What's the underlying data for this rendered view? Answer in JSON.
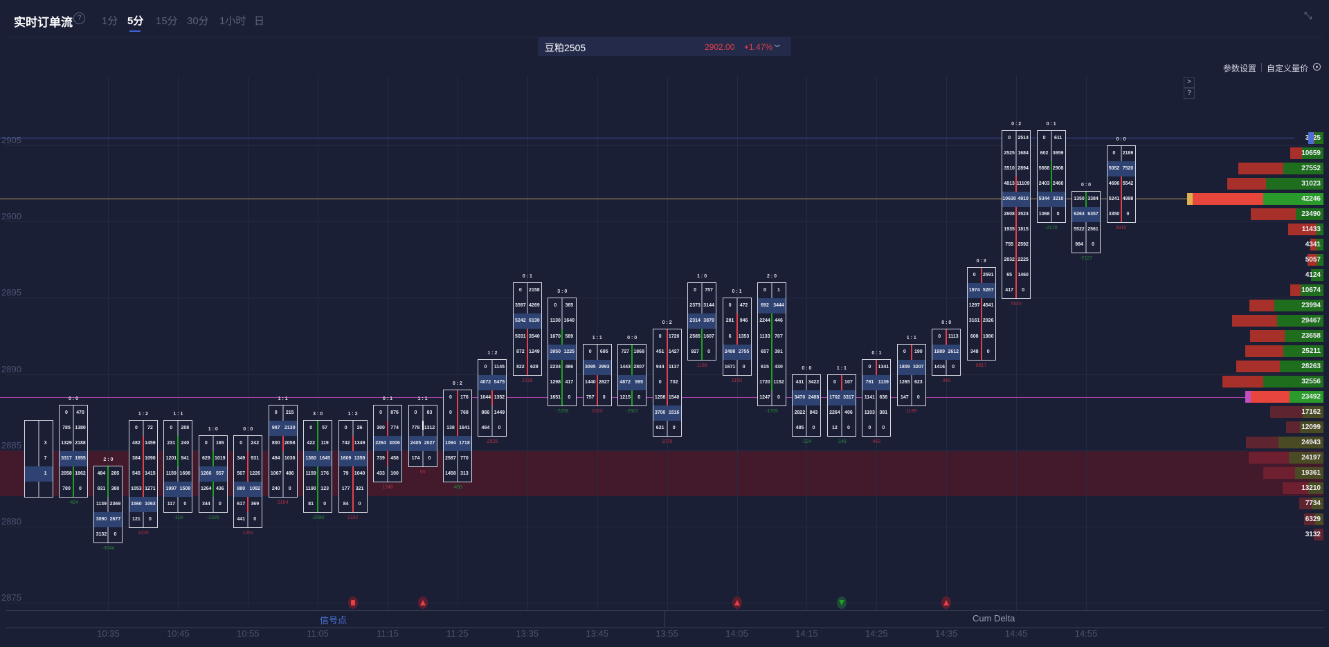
{
  "header": {
    "title": "实时订单流",
    "help": "?",
    "tabs": [
      "1分",
      "5分",
      "15分",
      "30分",
      "1小时",
      "日"
    ],
    "active_tab": "5分",
    "collapse_icon": "collapse-icon"
  },
  "symbol": {
    "name": "豆粕2505",
    "price": "2902.00",
    "change": "+1.47%",
    "color": "#e8404a"
  },
  "links": {
    "params": "参数设置",
    "custom": "自定义量价"
  },
  "side_buttons": [
    ">",
    "?"
  ],
  "y_axis": {
    "labels": [
      "2905",
      "2900",
      "2895",
      "2890",
      "2885",
      "2880",
      "2875"
    ]
  },
  "x_axis": {
    "labels": [
      "10:35",
      "10:45",
      "10:55",
      "11:05",
      "11:15",
      "11:25",
      "13:35",
      "13:45",
      "13:55",
      "14:05",
      "14:15",
      "14:25",
      "14:35",
      "14:45",
      "14:55"
    ]
  },
  "bottom_tabs": {
    "signals": "信号点",
    "cum_delta": "Cum Delta"
  },
  "colors": {
    "bg": "#1b1f36",
    "up": "#e8404a",
    "down": "#22a022",
    "poc_line": "#b8a060",
    "vah_line": "#3d52a0",
    "val_line": "#b040b0",
    "accent": "#3d64d6"
  },
  "candles": [
    {
      "head": "",
      "top": 2886,
      "rows": [
        [
          "",
          ""
        ],
        [
          "",
          "3"
        ],
        [
          "",
          "7"
        ],
        [
          "",
          "1"
        ],
        [
          "",
          ""
        ]
      ],
      "hl": 3,
      "foot": "",
      "body": null
    },
    {
      "head": "0 : 0",
      "top": 2887,
      "rows": [
        [
          "0",
          "470"
        ],
        [
          "785",
          "1380"
        ],
        [
          "1329",
          "2188"
        ],
        [
          "3317",
          "1955"
        ],
        [
          "2058",
          "1862"
        ],
        [
          "780",
          "0"
        ]
      ],
      "hl": 3,
      "foot": "-424",
      "body": [
        2884,
        2882,
        "green"
      ]
    },
    {
      "head": "2 : 0",
      "top": 2883,
      "rows": [
        [
          "484",
          "285"
        ],
        [
          "831",
          "380"
        ],
        [
          "1139",
          "2369"
        ],
        [
          "3090",
          "2677"
        ],
        [
          "3132",
          "0"
        ]
      ],
      "hl": 3,
      "foot": "-3044",
      "body": [
        2883,
        2882,
        "green"
      ]
    },
    {
      "head": "1 : 2",
      "top": 2886,
      "rows": [
        [
          "0",
          "72"
        ],
        [
          "482",
          "1459"
        ],
        [
          "384",
          "1090"
        ],
        [
          "545",
          "1415"
        ],
        [
          "1053",
          "1271"
        ],
        [
          "1560",
          "1063"
        ],
        [
          "121",
          "0"
        ]
      ],
      "hl": 5,
      "foot": "2225",
      "body": [
        2885,
        2881,
        "red"
      ]
    },
    {
      "head": "1 : 1",
      "top": 2886,
      "rows": [
        [
          "0",
          "208"
        ],
        [
          "231",
          "240"
        ],
        [
          "1201",
          "941"
        ],
        [
          "1159",
          "1698"
        ],
        [
          "1997",
          "1508"
        ],
        [
          "117",
          "0"
        ]
      ],
      "hl": 4,
      "foot": "-118",
      "body": [
        2885,
        2884,
        "green"
      ]
    },
    {
      "head": "1 : 0",
      "top": 2885,
      "rows": [
        [
          "0",
          "165"
        ],
        [
          "629",
          "1019"
        ],
        [
          "1266",
          "557"
        ],
        [
          "1264",
          "436"
        ],
        [
          "344",
          "0"
        ]
      ],
      "hl": 2,
      "foot": "-1326",
      "body": [
        2884,
        2882,
        "green"
      ]
    },
    {
      "head": "0 : 0",
      "top": 2885,
      "rows": [
        [
          "0",
          "242"
        ],
        [
          "349",
          "931"
        ],
        [
          "507",
          "1226"
        ],
        [
          "880",
          "1082"
        ],
        [
          "617",
          "369"
        ],
        [
          "441",
          "0"
        ]
      ],
      "hl": 3,
      "foot": "1261",
      "body": [
        2884,
        2881,
        "red"
      ]
    },
    {
      "head": "1 : 1",
      "top": 2887,
      "rows": [
        [
          "0",
          "215"
        ],
        [
          "987",
          "2130"
        ],
        [
          "800",
          "2058"
        ],
        [
          "494",
          "1036"
        ],
        [
          "1067",
          "486"
        ],
        [
          "240",
          "0"
        ]
      ],
      "hl": 1,
      "foot": "2104",
      "body": [
        2886,
        2885,
        "red"
      ]
    },
    {
      "head": "3 : 0",
      "top": 2886,
      "rows": [
        [
          "0",
          "57"
        ],
        [
          "422",
          "119"
        ],
        [
          "1360",
          "1645"
        ],
        [
          "1159",
          "176"
        ],
        [
          "1190",
          "123"
        ],
        [
          "81",
          "0"
        ]
      ],
      "hl": 2,
      "foot": "-2090",
      "body": [
        2886,
        2881,
        "green"
      ]
    },
    {
      "head": "1 : 2",
      "top": 2886,
      "rows": [
        [
          "0",
          "26"
        ],
        [
          "742",
          "1349"
        ],
        [
          "1609",
          "1359"
        ],
        [
          "79",
          "1040"
        ],
        [
          "177",
          "321"
        ],
        [
          "84",
          "0"
        ]
      ],
      "hl": 2,
      "foot": "1332",
      "body": [
        2885,
        2881,
        "red"
      ]
    },
    {
      "head": "0 : 1",
      "top": 2887,
      "rows": [
        [
          "0",
          "876"
        ],
        [
          "300",
          "774"
        ],
        [
          "2264",
          "3006"
        ],
        [
          "739",
          "458"
        ],
        [
          "433",
          "100"
        ]
      ],
      "hl": 2,
      "foot": "1248",
      "body": [
        2886,
        2884,
        "red"
      ]
    },
    {
      "head": "1 : 1",
      "top": 2887,
      "rows": [
        [
          "0",
          "83"
        ],
        [
          "778",
          "1312"
        ],
        [
          "2405",
          "2027"
        ],
        [
          "174",
          "0"
        ]
      ],
      "hl": 2,
      "foot": "65",
      "body": [
        2886,
        2886,
        "white"
      ]
    },
    {
      "head": "0 : 2",
      "top": 2888,
      "rows": [
        [
          "0",
          "176"
        ],
        [
          "0",
          "768"
        ],
        [
          "138",
          "1641"
        ],
        [
          "1094",
          "1718"
        ],
        [
          "2587",
          "770"
        ],
        [
          "1458",
          "313"
        ]
      ],
      "hl": 3,
      "foot": "-490",
      "body": [
        2888,
        2886,
        "red"
      ]
    },
    {
      "head": "1 : 2",
      "top": 2890,
      "rows": [
        [
          "0",
          "1145"
        ],
        [
          "4072",
          "5475"
        ],
        [
          "1044",
          "1352"
        ],
        [
          "866",
          "1449"
        ],
        [
          "464",
          "0"
        ]
      ],
      "hl": 1,
      "foot": "2925",
      "body": [
        2889,
        2888,
        "red"
      ]
    },
    {
      "head": "0 : 1",
      "top": 2895,
      "rows": [
        [
          "0",
          "2158"
        ],
        [
          "3597",
          "4269"
        ],
        [
          "5242",
          "6130"
        ],
        [
          "5031",
          "3540"
        ],
        [
          "872",
          "1249"
        ],
        [
          "822",
          "628"
        ]
      ],
      "hl": 2,
      "foot": "2318",
      "body": [
        2892,
        2890,
        "red"
      ]
    },
    {
      "head": "3 : 0",
      "top": 2894,
      "rows": [
        [
          "0",
          "365"
        ],
        [
          "1130",
          "1640"
        ],
        [
          "1670",
          "589"
        ],
        [
          "3950",
          "1225"
        ],
        [
          "2234",
          "486"
        ],
        [
          "1298",
          "417"
        ],
        [
          "1651",
          "0"
        ]
      ],
      "hl": 3,
      "foot": "-7259",
      "body": [
        2892,
        2888,
        "green"
      ]
    },
    {
      "head": "1 : 1",
      "top": 2891,
      "rows": [
        [
          "0",
          "695"
        ],
        [
          "3095",
          "2993"
        ],
        [
          "1440",
          "2627"
        ],
        [
          "757",
          "0"
        ]
      ],
      "hl": 1,
      "foot": "1023",
      "body": [
        2890,
        2888,
        "red"
      ]
    },
    {
      "head": "0 : 0",
      "top": 2891,
      "rows": [
        [
          "727",
          "1868"
        ],
        [
          "1443",
          "2807"
        ],
        [
          "4872",
          "995"
        ],
        [
          "1215",
          "0"
        ]
      ],
      "hl": 2,
      "foot": "-2507",
      "body": [
        2891,
        2888,
        "green"
      ]
    },
    {
      "head": "0 : 2",
      "top": 2892,
      "rows": [
        [
          "0",
          "1720"
        ],
        [
          "451",
          "1427"
        ],
        [
          "944",
          "1137"
        ],
        [
          "0",
          "702"
        ],
        [
          "1258",
          "1540"
        ],
        [
          "3700",
          "1516"
        ],
        [
          "621",
          "0"
        ]
      ],
      "hl": 5,
      "foot": "1076",
      "body": [
        2892,
        2888,
        "red"
      ]
    },
    {
      "head": "1 : 0",
      "top": 2895,
      "rows": [
        [
          "0",
          "757"
        ],
        [
          "2373",
          "3144"
        ],
        [
          "2314",
          "3879"
        ],
        [
          "2585",
          "1607"
        ],
        [
          "927",
          "0"
        ]
      ],
      "hl": 2,
      "foot": "1188",
      "body": [
        2893,
        2891,
        "green"
      ]
    },
    {
      "head": "0 : 1",
      "top": 2894,
      "rows": [
        [
          "0",
          "472"
        ],
        [
          "281",
          "946"
        ],
        [
          "6",
          "1353"
        ],
        [
          "2498",
          "2755"
        ],
        [
          "1671",
          "0"
        ]
      ],
      "hl": 3,
      "foot": "1150",
      "body": [
        2893,
        2892,
        "red"
      ]
    },
    {
      "head": "2 : 0",
      "top": 2895,
      "rows": [
        [
          "0",
          "1"
        ],
        [
          "692",
          "3444"
        ],
        [
          "2244",
          "446"
        ],
        [
          "1133",
          "707"
        ],
        [
          "657",
          "391"
        ],
        [
          "615",
          "430"
        ],
        [
          "1720",
          "1152"
        ],
        [
          "1247",
          "0"
        ]
      ],
      "hl": 1,
      "foot": "-1705",
      "body": [
        2894,
        2889,
        "green"
      ]
    },
    {
      "head": "0 : 0",
      "top": 2889,
      "rows": [
        [
          "431",
          "3422"
        ],
        [
          "3470",
          "2488"
        ],
        [
          "2822",
          "843"
        ],
        [
          "485",
          "0"
        ]
      ],
      "hl": 1,
      "foot": "-224",
      "body": [
        2888,
        2888,
        "white"
      ]
    },
    {
      "head": "1 : 1",
      "top": 2889,
      "rows": [
        [
          "0",
          "107"
        ],
        [
          "1702",
          "3317"
        ],
        [
          "2264",
          "406"
        ],
        [
          "12",
          "0"
        ]
      ],
      "hl": 1,
      "foot": "-145",
      "body": [
        2889,
        2888,
        "red"
      ]
    },
    {
      "head": "0 : 1",
      "top": 2890,
      "rows": [
        [
          "0",
          "1341"
        ],
        [
          "791",
          "1139"
        ],
        [
          "1141",
          "636"
        ],
        [
          "1103",
          "381"
        ],
        [
          "0",
          "0"
        ]
      ],
      "hl": 1,
      "foot": "453",
      "body": [
        2890,
        2889,
        "red"
      ]
    },
    {
      "head": "1 : 1",
      "top": 2891,
      "rows": [
        [
          "0",
          "190"
        ],
        [
          "1809",
          "3207"
        ],
        [
          "1265",
          "623"
        ],
        [
          "147",
          "0"
        ]
      ],
      "hl": 1,
      "foot": "1199",
      "body": [
        2891,
        2890,
        "red"
      ]
    },
    {
      "head": "0 : 0",
      "top": 2892,
      "rows": [
        [
          "0",
          "1113"
        ],
        [
          "1989",
          "2612"
        ],
        [
          "1416",
          "0"
        ]
      ],
      "hl": 1,
      "foot": "340",
      "body": [
        2892,
        2891,
        "red"
      ]
    },
    {
      "head": "0 : 3",
      "top": 2896,
      "rows": [
        [
          "0",
          "2591"
        ],
        [
          "1974",
          "5267"
        ],
        [
          "1297",
          "4541"
        ],
        [
          "3161",
          "2026"
        ],
        [
          "608",
          "1980"
        ],
        [
          "348",
          "0"
        ]
      ],
      "hl": 1,
      "foot": "8917",
      "body": [
        2896,
        2891,
        "red"
      ]
    },
    {
      "head": "0 : 2",
      "top": 2905,
      "rows": [
        [
          "0",
          "2514"
        ],
        [
          "2525",
          "1684"
        ],
        [
          "3510",
          "2894"
        ],
        [
          "4813",
          "11109"
        ],
        [
          "10630",
          "4910"
        ],
        [
          "2608",
          "3524"
        ],
        [
          "1935",
          "1815"
        ],
        [
          "755",
          "2592"
        ],
        [
          "2832",
          "2225"
        ],
        [
          "65",
          "1460"
        ],
        [
          "417",
          "0"
        ]
      ],
      "hl": 4,
      "foot": "5545",
      "body": [
        2902,
        2895,
        "red"
      ]
    },
    {
      "head": "0 : 1",
      "top": 2905,
      "rows": [
        [
          "0",
          "611"
        ],
        [
          "602",
          "3659"
        ],
        [
          "5668",
          "2908"
        ],
        [
          "2403",
          "2460"
        ],
        [
          "5344",
          "3210"
        ],
        [
          "1068",
          "0"
        ]
      ],
      "hl": 4,
      "foot": "-2170",
      "body": [
        2903,
        2901,
        "green"
      ]
    },
    {
      "head": "0 : 0",
      "top": 2901,
      "rows": [
        [
          "1350",
          "3384"
        ],
        [
          "6263",
          "6357"
        ],
        [
          "5522",
          "2561"
        ],
        [
          "984",
          "0"
        ]
      ],
      "hl": 1,
      "foot": "-2127",
      "body": [
        2901,
        2900,
        "green"
      ]
    },
    {
      "head": "0 : 0",
      "top": 2904,
      "rows": [
        [
          "0",
          "2189"
        ],
        [
          "5052",
          "7520"
        ],
        [
          "4696",
          "5542"
        ],
        [
          "5241",
          "4998"
        ],
        [
          "3350",
          "0"
        ]
      ],
      "hl": 1,
      "foot": "3910",
      "body": [
        2903,
        2900,
        "red"
      ]
    }
  ],
  "volume_profile": {
    "top": 2905,
    "rows": [
      {
        "total": "3125",
        "buy": 0.9,
        "tag": "vah"
      },
      {
        "total": "10659",
        "buy": 0.65
      },
      {
        "total": "27552",
        "buy": 0.47
      },
      {
        "total": "31023",
        "buy": 0.6
      },
      {
        "total": "42246",
        "buy": 0.46,
        "tag": "poc"
      },
      {
        "total": "23490",
        "buy": 0.38
      },
      {
        "total": "11433",
        "buy": 0.2
      },
      {
        "total": "4341",
        "buy": 0.5
      },
      {
        "total": "5057",
        "buy": 0.4
      },
      {
        "total": "4124",
        "buy": 0.95
      },
      {
        "total": "10674",
        "buy": 0.7
      },
      {
        "total": "23994",
        "buy": 0.66
      },
      {
        "total": "29467",
        "buy": 0.51
      },
      {
        "total": "23658",
        "buy": 0.53
      },
      {
        "total": "25211",
        "buy": 0.51
      },
      {
        "total": "28263",
        "buy": 0.5
      },
      {
        "total": "32556",
        "buy": 0.6
      },
      {
        "total": "23492",
        "buy": 0.47,
        "tag": "val"
      },
      {
        "total": "17162",
        "buy": 0.39
      },
      {
        "total": "12099",
        "buy": 0.63
      },
      {
        "total": "24943",
        "buy": 0.58
      },
      {
        "total": "24197",
        "buy": 0.46
      },
      {
        "total": "19361",
        "buy": 0.47
      },
      {
        "total": "13210",
        "buy": 0.38
      },
      {
        "total": "7734",
        "buy": 0.48
      },
      {
        "total": "6329",
        "buy": 0.42
      },
      {
        "total": "3132",
        "buy": 0
      }
    ]
  },
  "levels": {
    "vah": 2905,
    "poc": 2901,
    "val": 2888,
    "zone": [
      2884,
      2882
    ]
  },
  "signals": [
    {
      "candle": 9,
      "type": "special",
      "color": "#e8404a"
    },
    {
      "candle": 11,
      "type": "up",
      "color": "#e8404a"
    },
    {
      "candle": 20,
      "type": "up",
      "color": "#e8404a"
    },
    {
      "candle": 23,
      "type": "down",
      "color": "#22a022"
    },
    {
      "candle": 26,
      "type": "up",
      "color": "#e8404a"
    }
  ]
}
